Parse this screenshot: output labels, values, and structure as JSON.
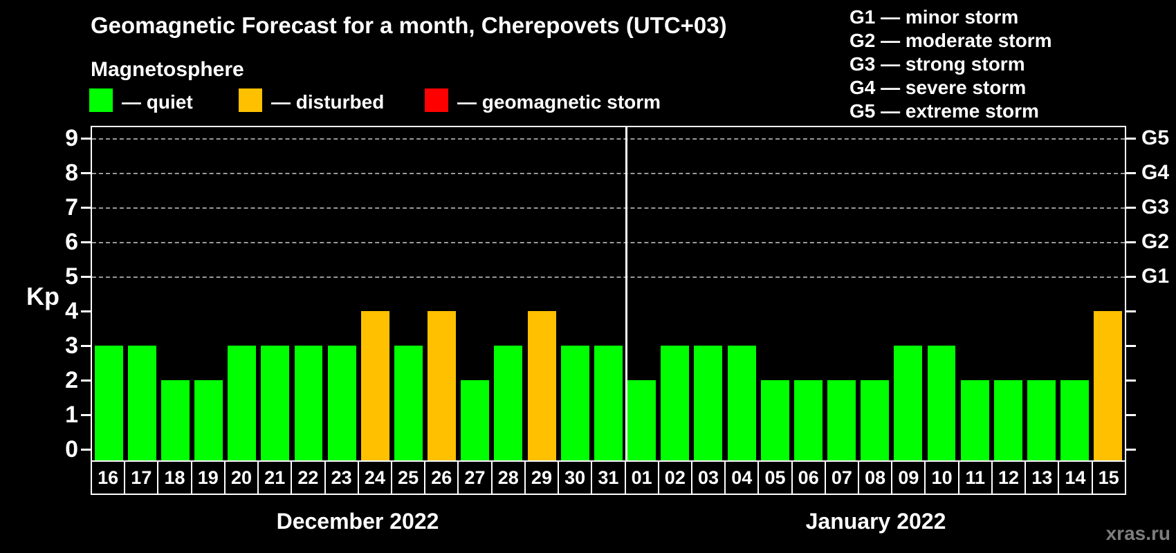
{
  "title": "Geomagnetic Forecast for a month, Cherepovets (UTC+03)",
  "subtitle": "Magnetosphere",
  "legend": {
    "items": [
      {
        "key": "quiet",
        "label": "— quiet",
        "color": "#00ff00"
      },
      {
        "key": "disturbed",
        "label": "— disturbed",
        "color": "#ffc000"
      },
      {
        "key": "storm",
        "label": "— geomagnetic storm",
        "color": "#ff0000"
      }
    ]
  },
  "g_legend": [
    {
      "code": "G1",
      "label": "minor storm"
    },
    {
      "code": "G2",
      "label": "moderate storm"
    },
    {
      "code": "G3",
      "label": "strong storm"
    },
    {
      "code": "G4",
      "label": "severe storm"
    },
    {
      "code": "G5",
      "label": "extreme storm"
    }
  ],
  "axes": {
    "y_label": "Kp",
    "y_ticks": [
      "0",
      "1",
      "2",
      "3",
      "4",
      "5",
      "6",
      "7",
      "8",
      "9"
    ],
    "right_levels": [
      {
        "label": "G5",
        "kp": 9
      },
      {
        "label": "G4",
        "kp": 8
      },
      {
        "label": "G3",
        "kp": 7
      },
      {
        "label": "G2",
        "kp": 6
      },
      {
        "label": "G1",
        "kp": 5
      }
    ]
  },
  "chart_data": {
    "type": "bar",
    "title": "Geomagnetic Forecast for a month, Cherepovets (UTC+03)",
    "ylabel": "Kp",
    "ylim": [
      0,
      9
    ],
    "grid": "dashed horizontal lines at Kp 5,6,7,8,9 (G1-G5 storm levels)",
    "gridlines_kp": [
      5,
      6,
      7,
      8,
      9
    ],
    "legend_position": "top",
    "groups": [
      {
        "label": "December 2022",
        "categories": [
          "16",
          "17",
          "18",
          "19",
          "20",
          "21",
          "22",
          "23",
          "24",
          "25",
          "26",
          "27",
          "28",
          "29",
          "30",
          "31"
        ],
        "values": [
          3,
          3,
          2,
          2,
          3,
          3,
          3,
          3,
          4,
          3,
          4,
          2,
          3,
          4,
          3,
          3
        ],
        "status": [
          "quiet",
          "quiet",
          "quiet",
          "quiet",
          "quiet",
          "quiet",
          "quiet",
          "quiet",
          "disturbed",
          "quiet",
          "disturbed",
          "quiet",
          "quiet",
          "disturbed",
          "quiet",
          "quiet"
        ]
      },
      {
        "label": "January 2022",
        "categories": [
          "01",
          "02",
          "03",
          "04",
          "05",
          "06",
          "07",
          "08",
          "09",
          "10",
          "11",
          "12",
          "13",
          "14",
          "15"
        ],
        "values": [
          2,
          3,
          3,
          3,
          2,
          2,
          2,
          2,
          3,
          3,
          2,
          2,
          2,
          2,
          4
        ],
        "status": [
          "quiet",
          "quiet",
          "quiet",
          "quiet",
          "quiet",
          "quiet",
          "quiet",
          "quiet",
          "quiet",
          "quiet",
          "quiet",
          "quiet",
          "quiet",
          "quiet",
          "disturbed"
        ]
      }
    ]
  },
  "colors": {
    "quiet": "#00ff00",
    "disturbed": "#ffc000",
    "storm": "#ff0000",
    "background": "#000000",
    "grid": "#9a9a9a",
    "frame": "#ffffff"
  },
  "watermark": "xras.ru"
}
